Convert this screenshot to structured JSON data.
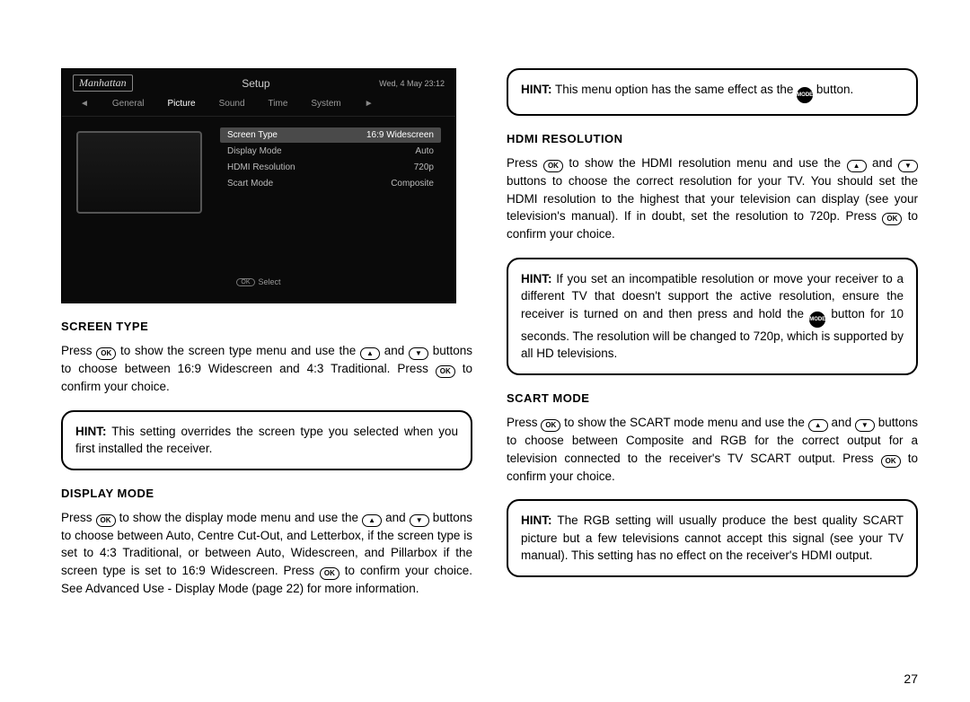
{
  "pageNumber": "27",
  "screenshot": {
    "logo": "Manhattan",
    "title": "Setup",
    "datetime": "Wed, 4 May  23:12",
    "tabs": [
      "General",
      "Picture",
      "Sound",
      "Time",
      "System"
    ],
    "activeTab": "Picture",
    "rows": [
      {
        "label": "Screen Type",
        "value": "16:9 Widescreen",
        "selected": true
      },
      {
        "label": "Display Mode",
        "value": "Auto",
        "selected": false
      },
      {
        "label": "HDMI Resolution",
        "value": "720p",
        "selected": false
      },
      {
        "label": "Scart Mode",
        "value": "Composite",
        "selected": false
      }
    ],
    "footer": "Select",
    "footerBtn": "OK"
  },
  "buttons": {
    "ok": "OK",
    "up": "▲",
    "down": "▼",
    "mode": "MODE"
  },
  "left": {
    "screenType": {
      "heading": "SCREEN TYPE",
      "text1a": "Press ",
      "text1b": " to show the screen type menu and use the ",
      "text1c": " and ",
      "text1d": " buttons to choose between 16:9 Widescreen and 4:3 Traditional. Press ",
      "text1e": " to confirm your choice.",
      "hintLabel": "HINT:",
      "hintText": " This setting overrides the screen type you selected when you first installed the receiver."
    },
    "displayMode": {
      "heading": "DISPLAY MODE",
      "text1a": "Press ",
      "text1b": " to show the display mode menu and use the ",
      "text1c": " and ",
      "text1d": " buttons to choose between Auto, Centre Cut-Out, and Letterbox, if the screen type is set to 4:3 Traditional, or between Auto, Widescreen, and Pillarbox if the screen type is set to 16:9 Widescreen. Press ",
      "text1e": " to confirm your choice. See Advanced Use - Display Mode (page 22) for more information."
    }
  },
  "right": {
    "topHint": {
      "label": "HINT:",
      "t1": " This menu option has the same effect as the ",
      "t2": " button."
    },
    "hdmi": {
      "heading": "HDMI RESOLUTION",
      "t1": "Press ",
      "t2": " to show the HDMI resolution menu and use the ",
      "t3": " and ",
      "t4": " buttons to choose the correct resolution for your TV. You should set the HDMI resolution to the highest that your television can display (see your television's manual). If in doubt, set the resolution to 720p. Press ",
      "t5": " to confirm your choice.",
      "hintLabel": "HINT:",
      "hintT1": " If you set an incompatible resolution or move your receiver to a different TV that doesn't support the active resolution, ensure the receiver is turned on and then press and hold the ",
      "hintT2": " button for 10 seconds. The resolution will be changed to 720p, which is supported by all HD televisions."
    },
    "scart": {
      "heading": "SCART MODE",
      "t1": "Press ",
      "t2": " to show the SCART mode menu and use the ",
      "t3": " and ",
      "t4": " buttons to choose between Composite and RGB for the correct output for a television connected to the receiver's TV SCART output. Press ",
      "t5": " to confirm your choice.",
      "hintLabel": "HINT:",
      "hintText": " The RGB setting will usually produce the best quality SCART picture but a few televisions cannot accept this signal (see your TV manual). This setting has no effect on the receiver's HDMI output."
    }
  }
}
